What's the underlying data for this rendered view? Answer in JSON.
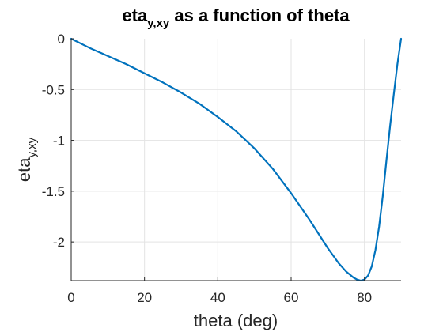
{
  "chart_data": {
    "type": "line",
    "title": {
      "main": "eta",
      "sub": "y,xy",
      "rest": " as a function of theta"
    },
    "xlabel": "theta (deg)",
    "ylabel": {
      "main": "eta",
      "sub": "y,xy"
    },
    "xlim": [
      0,
      90
    ],
    "ylim": [
      -2.38,
      0
    ],
    "x_ticks": [
      0,
      20,
      40,
      60,
      80
    ],
    "y_ticks": [
      0,
      -0.5,
      -1,
      -1.5,
      -2
    ],
    "grid": true,
    "line_color": "#0072BD",
    "series": [
      {
        "x": [
          0,
          5,
          10,
          15,
          20,
          25,
          30,
          35,
          40,
          45,
          50,
          55,
          60,
          65,
          70,
          73,
          75,
          77,
          78,
          79,
          80,
          81,
          82,
          83,
          84,
          85,
          86,
          87,
          88,
          89,
          90
        ],
        "y": [
          0,
          -0.09,
          -0.17,
          -0.25,
          -0.34,
          -0.43,
          -0.53,
          -0.64,
          -0.77,
          -0.91,
          -1.08,
          -1.28,
          -1.52,
          -1.78,
          -2.06,
          -2.21,
          -2.29,
          -2.35,
          -2.37,
          -2.38,
          -2.37,
          -2.33,
          -2.24,
          -2.08,
          -1.85,
          -1.55,
          -1.2,
          -0.86,
          -0.55,
          -0.25,
          0
        ]
      }
    ]
  }
}
